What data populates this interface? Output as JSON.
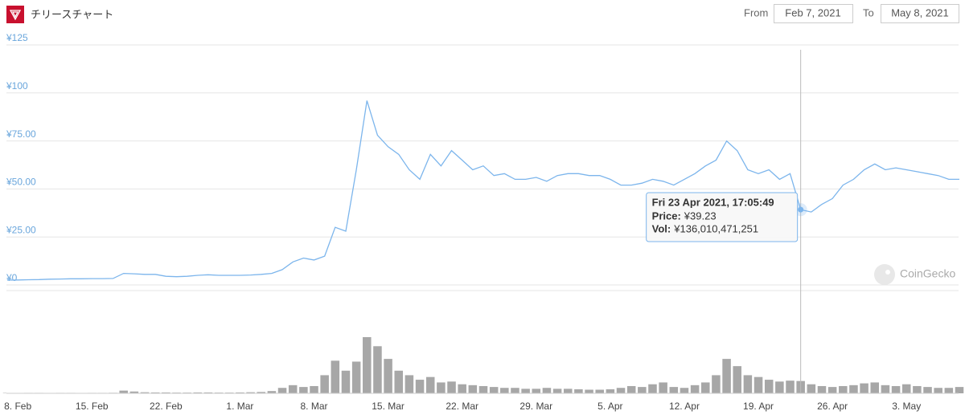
{
  "header": {
    "title": "チリースチャート",
    "from_label": "From",
    "from": "Feb 7, 2021",
    "to_label": "To",
    "to": "May 8, 2021",
    "brand": "CoinGecko"
  },
  "chart_data": {
    "type": "line",
    "x": [
      "2021-02-07",
      "2021-02-08",
      "2021-02-09",
      "2021-02-10",
      "2021-02-11",
      "2021-02-12",
      "2021-02-13",
      "2021-02-14",
      "2021-02-15",
      "2021-02-16",
      "2021-02-17",
      "2021-02-18",
      "2021-02-19",
      "2021-02-20",
      "2021-02-21",
      "2021-02-22",
      "2021-02-23",
      "2021-02-24",
      "2021-02-25",
      "2021-02-26",
      "2021-02-27",
      "2021-02-28",
      "2021-03-01",
      "2021-03-02",
      "2021-03-03",
      "2021-03-04",
      "2021-03-05",
      "2021-03-06",
      "2021-03-07",
      "2021-03-08",
      "2021-03-09",
      "2021-03-10",
      "2021-03-11",
      "2021-03-12",
      "2021-03-13",
      "2021-03-14",
      "2021-03-15",
      "2021-03-16",
      "2021-03-17",
      "2021-03-18",
      "2021-03-19",
      "2021-03-20",
      "2021-03-21",
      "2021-03-22",
      "2021-03-23",
      "2021-03-24",
      "2021-03-25",
      "2021-03-26",
      "2021-03-27",
      "2021-03-28",
      "2021-03-29",
      "2021-03-30",
      "2021-03-31",
      "2021-04-01",
      "2021-04-02",
      "2021-04-03",
      "2021-04-04",
      "2021-04-05",
      "2021-04-06",
      "2021-04-07",
      "2021-04-08",
      "2021-04-09",
      "2021-04-10",
      "2021-04-11",
      "2021-04-12",
      "2021-04-13",
      "2021-04-14",
      "2021-04-15",
      "2021-04-16",
      "2021-04-17",
      "2021-04-18",
      "2021-04-19",
      "2021-04-20",
      "2021-04-21",
      "2021-04-22",
      "2021-04-23",
      "2021-04-24",
      "2021-04-25",
      "2021-04-26",
      "2021-04-27",
      "2021-04-28",
      "2021-04-29",
      "2021-04-30",
      "2021-05-01",
      "2021-05-02",
      "2021-05-03",
      "2021-05-04",
      "2021-05-05",
      "2021-05-06",
      "2021-05-07",
      "2021-05-08"
    ],
    "series": [
      {
        "color": "#7cb5ec",
        "values": [
          2.5,
          2.6,
          2.7,
          2.8,
          3,
          3.1,
          3.2,
          3.2,
          3.3,
          3.3,
          3.4,
          6,
          5.8,
          5.5,
          5.5,
          4.5,
          4.3,
          4.5,
          5,
          5.3,
          5,
          5,
          5,
          5.2,
          5.5,
          6,
          8,
          12,
          14,
          13,
          15,
          30,
          28,
          60,
          96,
          78,
          72,
          68,
          60,
          55,
          68,
          62,
          70,
          65,
          60,
          62,
          57,
          58,
          55,
          55,
          56,
          54,
          57,
          58,
          58,
          57,
          57,
          55,
          52,
          52,
          53,
          55,
          54,
          52,
          55,
          58,
          62,
          65,
          75,
          70,
          60,
          58,
          60,
          55,
          58,
          39.23,
          38,
          42,
          45,
          52,
          55,
          60,
          63,
          60,
          61,
          60,
          59,
          58,
          57,
          55,
          55
        ]
      }
    ],
    "volume": {
      "color": "#8a8a8a",
      "values": [
        4000000000.0,
        4000000000.0,
        5000000000.0,
        5000000000.0,
        4000000000.0,
        5000000000.0,
        5000000000.0,
        4000000000.0,
        5000000000.0,
        5000000000.0,
        6000000000.0,
        30000000000.0,
        20000000000.0,
        12000000000.0,
        10000000000.0,
        10000000000.0,
        8000000000.0,
        8000000000.0,
        10000000000.0,
        10000000000.0,
        8000000000.0,
        8000000000.0,
        10000000000.0,
        12000000000.0,
        15000000000.0,
        25000000000.0,
        60000000000.0,
        90000000000.0,
        70000000000.0,
        80000000000.0,
        200000000000.0,
        360000000000.0,
        250000000000.0,
        350000000000.0,
        620000000000.0,
        520000000000.0,
        380000000000.0,
        250000000000.0,
        200000000000.0,
        150000000000.0,
        180000000000.0,
        120000000000.0,
        130000000000.0,
        100000000000.0,
        90000000000.0,
        80000000000.0,
        70000000000.0,
        60000000000.0,
        60000000000.0,
        50000000000.0,
        50000000000.0,
        60000000000.0,
        50000000000.0,
        50000000000.0,
        45000000000.0,
        40000000000.0,
        40000000000.0,
        45000000000.0,
        60000000000.0,
        80000000000.0,
        70000000000.0,
        100000000000.0,
        120000000000.0,
        70000000000.0,
        60000000000.0,
        90000000000.0,
        120000000000.0,
        200000000000.0,
        380000000000.0,
        300000000000.0,
        200000000000.0,
        180000000000.0,
        150000000000.0,
        130000000000.0,
        140000000000.0,
        136010471251,
        100000000000.0,
        80000000000.0,
        70000000000.0,
        80000000000.0,
        90000000000.0,
        110000000000.0,
        120000000000.0,
        90000000000.0,
        80000000000.0,
        100000000000.0,
        80000000000.0,
        70000000000.0,
        60000000000.0,
        60000000000.0,
        70000000000.0
      ]
    },
    "xlim": [
      "2021-02-07",
      "2021-05-08"
    ],
    "xticks": [
      {
        "value": "2021-02-08",
        "label": "8. Feb"
      },
      {
        "value": "2021-02-15",
        "label": "15. Feb"
      },
      {
        "value": "2021-02-22",
        "label": "22. Feb"
      },
      {
        "value": "2021-03-01",
        "label": "1. Mar"
      },
      {
        "value": "2021-03-08",
        "label": "8. Mar"
      },
      {
        "value": "2021-03-15",
        "label": "15. Mar"
      },
      {
        "value": "2021-03-22",
        "label": "22. Mar"
      },
      {
        "value": "2021-03-29",
        "label": "29. Mar"
      },
      {
        "value": "2021-04-05",
        "label": "5. Apr"
      },
      {
        "value": "2021-04-12",
        "label": "12. Apr"
      },
      {
        "value": "2021-04-19",
        "label": "19. Apr"
      },
      {
        "value": "2021-04-26",
        "label": "26. Apr"
      },
      {
        "value": "2021-05-03",
        "label": "3. May"
      }
    ],
    "ylim": [
      0,
      125
    ],
    "yticks": [
      {
        "value": 0,
        "label": "¥0"
      },
      {
        "value": 25,
        "label": "¥25.00"
      },
      {
        "value": 50,
        "label": "¥50.00"
      },
      {
        "value": 75,
        "label": "¥75.00"
      },
      {
        "value": 100,
        "label": "¥100"
      },
      {
        "value": 125,
        "label": "¥125"
      }
    ],
    "grid": true,
    "hover_x": "2021-04-23",
    "tooltip": {
      "title": "Fri 23 Apr 2021, 17:05:49",
      "rows": [
        {
          "label": "Price:",
          "value": "¥39.23"
        },
        {
          "label": "Vol:",
          "value": "¥136,010,471,251"
        }
      ]
    }
  }
}
